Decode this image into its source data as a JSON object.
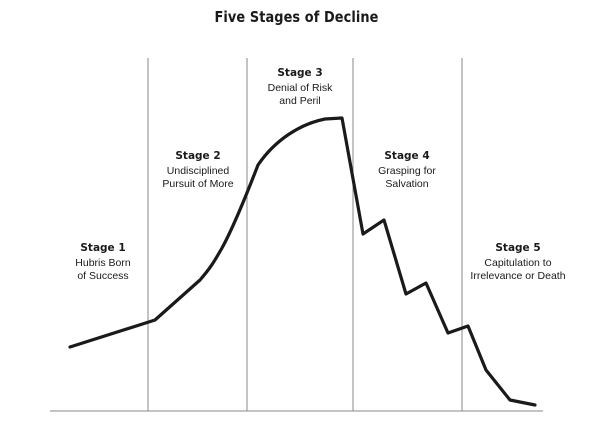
{
  "title": "Five Stages of Decline",
  "stages": [
    {
      "name": "Stage 1",
      "description": "Hubris Born\nof Success"
    },
    {
      "name": "Stage 2",
      "description": "Undisciplined\nPursuit of More"
    },
    {
      "name": "Stage 3",
      "description": "Denial of Risk\nand Peril"
    },
    {
      "name": "Stage 4",
      "description": "Grasping for\nSalvation"
    },
    {
      "name": "Stage 5",
      "description": "Capitulation to\nIrrelevance or Death"
    }
  ],
  "colors": {
    "curve": "#1a1a1a",
    "divider": "#8a8a8a",
    "baseline": "#8a8a8a",
    "text": "#1a1a1a"
  }
}
